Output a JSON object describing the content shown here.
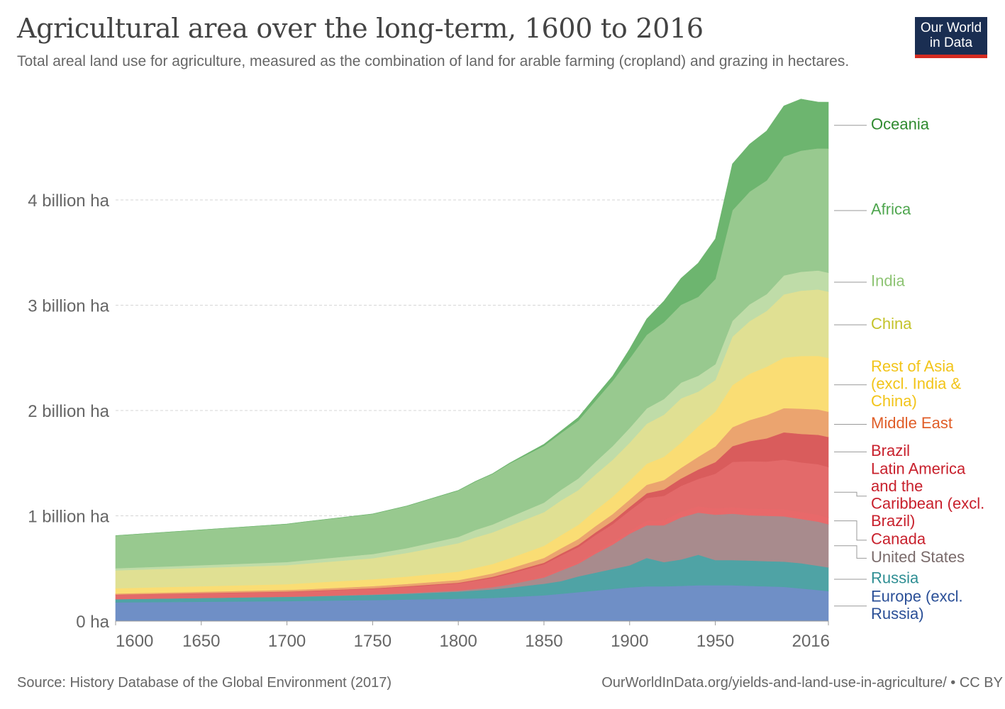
{
  "title": "Agricultural area over the long-term, 1600 to 2016",
  "subtitle": "Total areal land use for agriculture, measured as the combination of land for arable farming (cropland) and grazing in hectares.",
  "logo": {
    "line1": "Our World",
    "line2": "in Data",
    "bg": "#1a2e52",
    "accent": "#d42b21"
  },
  "footer": {
    "source": "Source: History Database of the Global Environment (2017)",
    "url": "OurWorldInData.org/yields-and-land-use-in-agriculture/ • CC BY"
  },
  "chart_data": {
    "type": "area",
    "stacked": true,
    "title": "Agricultural area over the long-term, 1600 to 2016",
    "xlabel": "",
    "ylabel": "",
    "xlim": [
      1600,
      2016
    ],
    "ylim": [
      0,
      4.9
    ],
    "unit": "billion hectares",
    "grid": true,
    "legend": "right",
    "x_ticks": [
      {
        "value": 1600,
        "label": "1600"
      },
      {
        "value": 1650,
        "label": "1650"
      },
      {
        "value": 1700,
        "label": "1700"
      },
      {
        "value": 1750,
        "label": "1750"
      },
      {
        "value": 1800,
        "label": "1800"
      },
      {
        "value": 1850,
        "label": "1850"
      },
      {
        "value": 1900,
        "label": "1900"
      },
      {
        "value": 1950,
        "label": "1950"
      },
      {
        "value": 2016,
        "label": "2016"
      }
    ],
    "y_ticks": [
      {
        "value": 0,
        "label": "0 ha"
      },
      {
        "value": 1,
        "label": "1 billion ha"
      },
      {
        "value": 2,
        "label": "2 billion ha"
      },
      {
        "value": 3,
        "label": "3 billion ha"
      },
      {
        "value": 4,
        "label": "4 billion ha"
      }
    ],
    "x": [
      1600,
      1700,
      1710,
      1750,
      1770,
      1800,
      1810,
      1820,
      1830,
      1850,
      1860,
      1870,
      1880,
      1890,
      1900,
      1910,
      1920,
      1930,
      1940,
      1950,
      1960,
      1970,
      1980,
      1990,
      2000,
      2010,
      2016
    ],
    "series": [
      {
        "name": "Europe (excl. Russia)",
        "color": "#6f8fc6",
        "label_color": "#2a4f97",
        "values": [
          0.178,
          0.19,
          0.192,
          0.2,
          0.205,
          0.212,
          0.216,
          0.22,
          0.228,
          0.245,
          0.26,
          0.275,
          0.29,
          0.305,
          0.32,
          0.33,
          0.33,
          0.335,
          0.34,
          0.34,
          0.34,
          0.335,
          0.33,
          0.325,
          0.31,
          0.295,
          0.285
        ]
      },
      {
        "name": "Russia",
        "color": "#4fa3a5",
        "label_color": "#2e8e93",
        "values": [
          0.03,
          0.04,
          0.041,
          0.05,
          0.055,
          0.068,
          0.075,
          0.082,
          0.09,
          0.11,
          0.12,
          0.15,
          0.17,
          0.19,
          0.21,
          0.27,
          0.23,
          0.25,
          0.29,
          0.24,
          0.24,
          0.24,
          0.24,
          0.24,
          0.24,
          0.23,
          0.225
        ]
      },
      {
        "name": "United States",
        "color": "#a88b8d",
        "label_color": "#7a6b6b",
        "values": [
          0.001,
          0.002,
          0.002,
          0.004,
          0.006,
          0.01,
          0.015,
          0.02,
          0.03,
          0.06,
          0.1,
          0.12,
          0.18,
          0.23,
          0.3,
          0.31,
          0.35,
          0.4,
          0.4,
          0.43,
          0.44,
          0.43,
          0.43,
          0.43,
          0.42,
          0.42,
          0.41
        ]
      },
      {
        "name": "Canada",
        "color": "#e8696a",
        "label_color": "#c8202c",
        "values": [
          0.0,
          0.0,
          0.0,
          0.001,
          0.001,
          0.002,
          0.003,
          0.004,
          0.005,
          0.01,
          0.014,
          0.018,
          0.022,
          0.026,
          0.03,
          0.045,
          0.05,
          0.055,
          0.06,
          0.06,
          0.062,
          0.064,
          0.066,
          0.068,
          0.068,
          0.065,
          0.064
        ]
      },
      {
        "name": "Latin America and the Caribbean (excl. Brazil)",
        "color": "#e36a6a",
        "label_color": "#c8202c",
        "values": [
          0.04,
          0.045,
          0.047,
          0.052,
          0.058,
          0.066,
          0.075,
          0.085,
          0.098,
          0.115,
          0.13,
          0.14,
          0.155,
          0.17,
          0.19,
          0.215,
          0.23,
          0.245,
          0.26,
          0.33,
          0.43,
          0.45,
          0.45,
          0.47,
          0.47,
          0.48,
          0.48
        ]
      },
      {
        "name": "Brazil",
        "color": "#d95c5c",
        "label_color": "#c8202c",
        "values": [
          0.003,
          0.004,
          0.004,
          0.005,
          0.006,
          0.007,
          0.008,
          0.01,
          0.012,
          0.015,
          0.018,
          0.021,
          0.025,
          0.03,
          0.035,
          0.045,
          0.06,
          0.07,
          0.09,
          0.11,
          0.15,
          0.19,
          0.22,
          0.26,
          0.27,
          0.28,
          0.285
        ]
      },
      {
        "name": "Middle East",
        "color": "#eba46f",
        "label_color": "#e05d27",
        "values": [
          0.01,
          0.015,
          0.016,
          0.02,
          0.022,
          0.025,
          0.028,
          0.032,
          0.036,
          0.045,
          0.05,
          0.055,
          0.06,
          0.065,
          0.07,
          0.08,
          0.09,
          0.1,
          0.12,
          0.15,
          0.18,
          0.2,
          0.22,
          0.23,
          0.24,
          0.24,
          0.24
        ]
      },
      {
        "name": "Rest of Asia (excl. India & China)",
        "color": "#fadd74",
        "label_color": "#f2c419",
        "values": [
          0.05,
          0.055,
          0.058,
          0.065,
          0.07,
          0.08,
          0.085,
          0.09,
          0.098,
          0.115,
          0.125,
          0.135,
          0.15,
          0.165,
          0.18,
          0.2,
          0.22,
          0.24,
          0.29,
          0.33,
          0.4,
          0.44,
          0.46,
          0.48,
          0.5,
          0.51,
          0.51
        ]
      },
      {
        "name": "China",
        "color": "#e0e093",
        "label_color": "#c4c32a",
        "values": [
          0.17,
          0.18,
          0.185,
          0.2,
          0.225,
          0.27,
          0.29,
          0.3,
          0.31,
          0.32,
          0.33,
          0.33,
          0.34,
          0.35,
          0.36,
          0.38,
          0.4,
          0.42,
          0.33,
          0.3,
          0.46,
          0.5,
          0.53,
          0.6,
          0.62,
          0.63,
          0.63
        ]
      },
      {
        "name": "India",
        "color": "#bfdca8",
        "label_color": "#8ec474",
        "values": [
          0.02,
          0.03,
          0.032,
          0.04,
          0.045,
          0.06,
          0.07,
          0.075,
          0.08,
          0.09,
          0.1,
          0.11,
          0.12,
          0.13,
          0.14,
          0.145,
          0.15,
          0.15,
          0.15,
          0.15,
          0.15,
          0.16,
          0.16,
          0.18,
          0.18,
          0.18,
          0.18
        ]
      },
      {
        "name": "Africa",
        "color": "#98c98f",
        "label_color": "#4fa64f",
        "values": [
          0.31,
          0.36,
          0.365,
          0.38,
          0.4,
          0.44,
          0.46,
          0.48,
          0.51,
          0.54,
          0.54,
          0.55,
          0.58,
          0.62,
          0.66,
          0.7,
          0.73,
          0.74,
          0.75,
          0.81,
          1.05,
          1.07,
          1.08,
          1.13,
          1.15,
          1.16,
          1.18
        ]
      },
      {
        "name": "Oceania",
        "color": "#6db56f",
        "label_color": "#2f8a2f",
        "values": [
          0.0,
          0.001,
          0.001,
          0.001,
          0.001,
          0.002,
          0.002,
          0.003,
          0.005,
          0.015,
          0.02,
          0.03,
          0.04,
          0.045,
          0.09,
          0.15,
          0.2,
          0.25,
          0.32,
          0.38,
          0.44,
          0.45,
          0.47,
          0.48,
          0.49,
          0.44,
          0.44
        ]
      }
    ],
    "labels": [
      {
        "series": "Oceania",
        "lines": [
          "Oceania"
        ]
      },
      {
        "series": "Africa",
        "lines": [
          "Africa"
        ]
      },
      {
        "series": "India",
        "lines": [
          "India"
        ]
      },
      {
        "series": "China",
        "lines": [
          "China"
        ]
      },
      {
        "series": "Rest of Asia (excl. India & China)",
        "lines": [
          "Rest of Asia",
          "(excl. India &",
          "China)"
        ]
      },
      {
        "series": "Middle East",
        "lines": [
          "Middle East"
        ]
      },
      {
        "series": "Brazil",
        "lines": [
          "Brazil"
        ]
      },
      {
        "series": "Latin America and the Caribbean (excl. Brazil)",
        "lines": [
          "Latin America",
          "and the",
          "Caribbean (excl.",
          "Brazil)"
        ]
      },
      {
        "series": "Canada",
        "lines": [
          "Canada"
        ]
      },
      {
        "series": "United States",
        "lines": [
          "United States"
        ]
      },
      {
        "series": "Russia",
        "lines": [
          "Russia"
        ]
      },
      {
        "series": "Europe (excl. Russia)",
        "lines": [
          "Europe (excl.",
          "Russia)"
        ]
      }
    ]
  }
}
